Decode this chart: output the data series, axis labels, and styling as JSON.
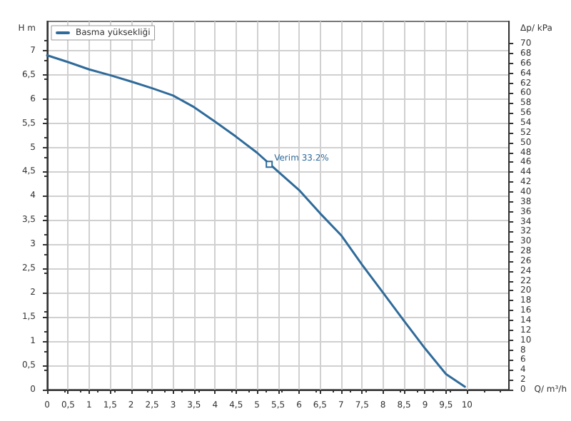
{
  "chart_data": {
    "type": "line",
    "xlabel": "Q/ m³/h",
    "ylabel": "H m",
    "y2label": "Δp/ kPa",
    "xlim": [
      0,
      11
    ],
    "xticks": [
      0,
      {
        "value": 0.5,
        "label": "0,5"
      },
      1,
      {
        "value": 1.5,
        "label": "1,5"
      },
      2,
      {
        "value": 2.5,
        "label": "2,5"
      },
      3,
      {
        "value": 3.5,
        "label": "3,5"
      },
      4,
      {
        "value": 4.5,
        "label": "4,5"
      },
      5,
      {
        "value": 5.5,
        "label": "5,5"
      },
      6,
      {
        "value": 6.5,
        "label": "6,5"
      },
      7,
      {
        "value": 7.5,
        "label": "7,5"
      },
      8,
      {
        "value": 8.5,
        "label": "8,5"
      },
      9,
      {
        "value": 9.5,
        "label": "9,5"
      },
      10
    ],
    "ylim": [
      0,
      7.6
    ],
    "yticks": [
      0,
      {
        "value": 0.5,
        "label": "0,5"
      },
      1,
      {
        "value": 1.5,
        "label": "1,5"
      },
      2,
      {
        "value": 2.5,
        "label": "2,5"
      },
      3,
      {
        "value": 3.5,
        "label": "3,5"
      },
      4,
      {
        "value": 4.5,
        "label": "4,5"
      },
      5,
      {
        "value": 5.5,
        "label": "5,5"
      },
      6,
      {
        "value": 6.5,
        "label": "6,5"
      },
      7
    ],
    "y2lim": [
      0,
      74.5
    ],
    "y2ticks": [
      0,
      2,
      4,
      6,
      8,
      10,
      12,
      14,
      16,
      18,
      20,
      22,
      24,
      26,
      28,
      30,
      32,
      34,
      36,
      38,
      40,
      42,
      44,
      46,
      48,
      50,
      52,
      54,
      56,
      58,
      60,
      62,
      64,
      66,
      68,
      70
    ],
    "grid": true,
    "legend": "top left",
    "marker": "none",
    "line_style": "solid",
    "series": [
      {
        "name": "Basma yüksekliği",
        "color": "#2f6b9a",
        "x": [
          0,
          0.5,
          1,
          1.5,
          2,
          2.5,
          3,
          3.5,
          4,
          4.5,
          5,
          5.5,
          6,
          6.5,
          7,
          7.5,
          8,
          8.5,
          9,
          9.5,
          9.95
        ],
        "values": [
          6.9,
          6.76,
          6.61,
          6.49,
          6.36,
          6.22,
          6.07,
          5.83,
          5.53,
          5.22,
          4.89,
          4.5,
          4.12,
          3.64,
          3.19,
          2.58,
          2.0,
          1.42,
          0.85,
          0.32,
          0.06
        ]
      }
    ],
    "annotations": [
      {
        "text": "Verim 33.2%",
        "x": 5.29,
        "y": 4.65
      }
    ]
  }
}
